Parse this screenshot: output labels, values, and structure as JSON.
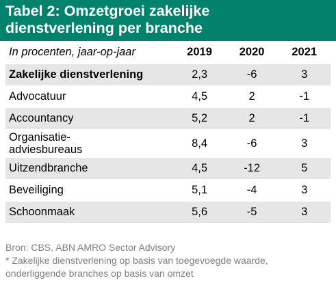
{
  "title": {
    "line1": "Tabel 2: Omzetgroei zakelijke",
    "line2": "dienstverlening per branche"
  },
  "colors": {
    "title_background": "#00826c",
    "row_shade": "#e6e6e6",
    "footnote_text": "#7f7f7f"
  },
  "table": {
    "header": {
      "label": "In procenten, jaar-op-jaar",
      "years": [
        "2019",
        "2020",
        "2021"
      ]
    },
    "rows": [
      {
        "label_lines": [
          "Zakelijke dienstverlening"
        ],
        "values": [
          "2,3",
          "-6",
          "3"
        ],
        "bold": true
      },
      {
        "label_lines": [
          "Advocatuur"
        ],
        "values": [
          "4,5",
          "2",
          "-1"
        ]
      },
      {
        "label_lines": [
          "Accountancy"
        ],
        "values": [
          "5,2",
          "2",
          "-1"
        ]
      },
      {
        "label_lines": [
          "Organisatie-",
          "adviesbureaus"
        ],
        "values": [
          "8,4",
          "-6",
          "3"
        ]
      },
      {
        "label_lines": [
          "Uitzendbranche"
        ],
        "values": [
          "4,5",
          "-12",
          "5"
        ]
      },
      {
        "label_lines": [
          "Beveiliging"
        ],
        "values": [
          "5,1",
          "-4",
          "3"
        ]
      },
      {
        "label_lines": [
          "Schoonmaak"
        ],
        "values": [
          "5,6",
          "-5",
          "3"
        ]
      }
    ]
  },
  "footnotes": {
    "source": "Bron: CBS, ABN AMRO Sector Advisory",
    "note_line1": "* Zakelijke dienstverlening op basis van toegevoegde waarde,",
    "note_line2": "onderliggende branches op basis van omzet"
  }
}
